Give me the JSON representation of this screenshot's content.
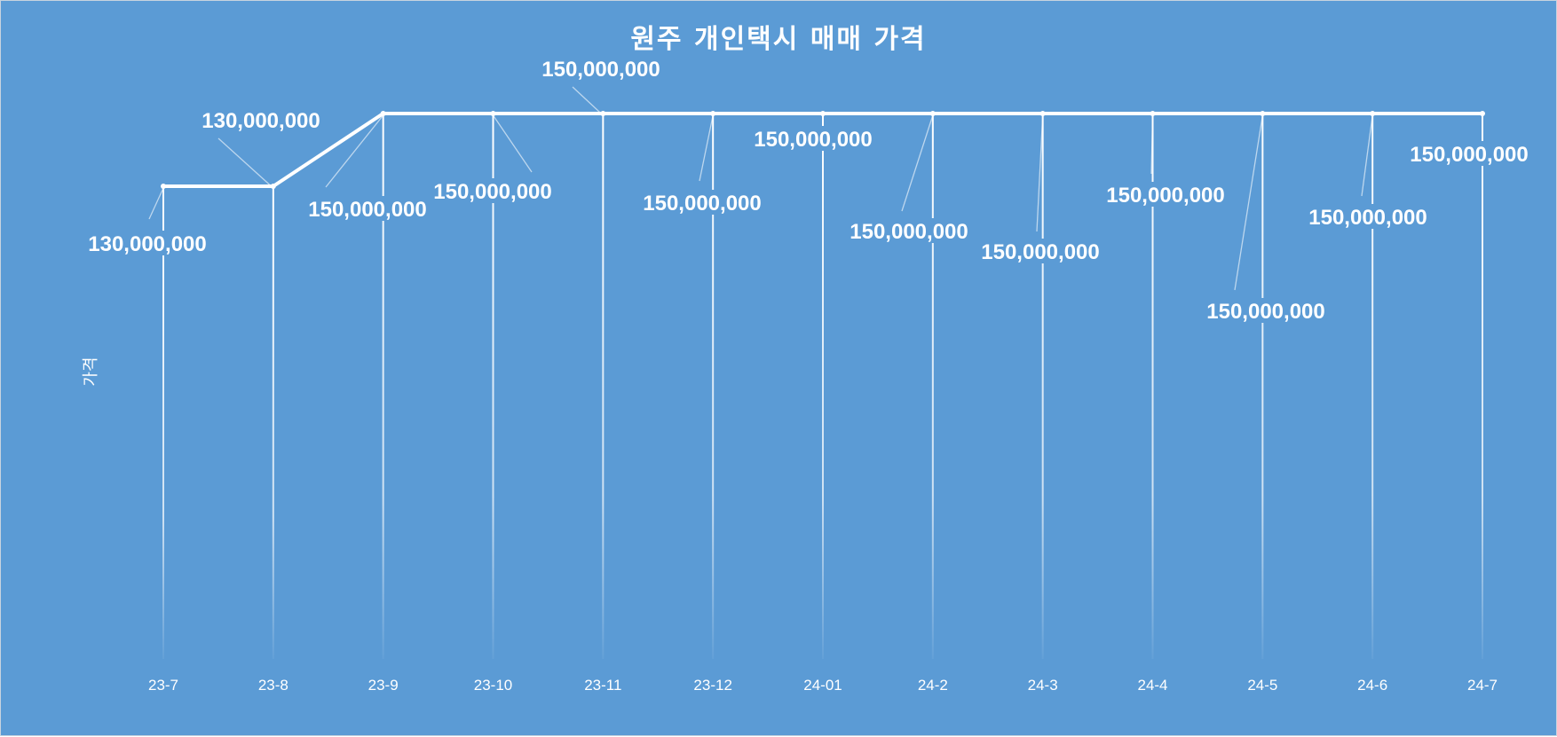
{
  "chart_data": {
    "type": "line",
    "title": "원주 개인택시 매매 가격",
    "ylabel": "가격",
    "categories": [
      "23-7",
      "23-8",
      "23-9",
      "23-10",
      "23-11",
      "23-12",
      "24-01",
      "24-2",
      "24-3",
      "24-4",
      "24-5",
      "24-6",
      "24-7"
    ],
    "series": [
      {
        "values": [
          130000000,
          130000000,
          150000000,
          150000000,
          150000000,
          150000000,
          150000000,
          150000000,
          150000000,
          150000000,
          150000000,
          150000000,
          150000000
        ],
        "labels": [
          "130,000,000",
          "130,000,000",
          "150,000,000",
          "150,000,000",
          "150,000,000",
          "150,000,000",
          "150,000,000",
          "150,000,000",
          "150,000,000",
          "150,000,000",
          "150,000,000",
          "150,000,000",
          "150,000,000"
        ]
      }
    ],
    "colors": {
      "background": "#5b9bd5",
      "line": "#ffffff"
    }
  }
}
